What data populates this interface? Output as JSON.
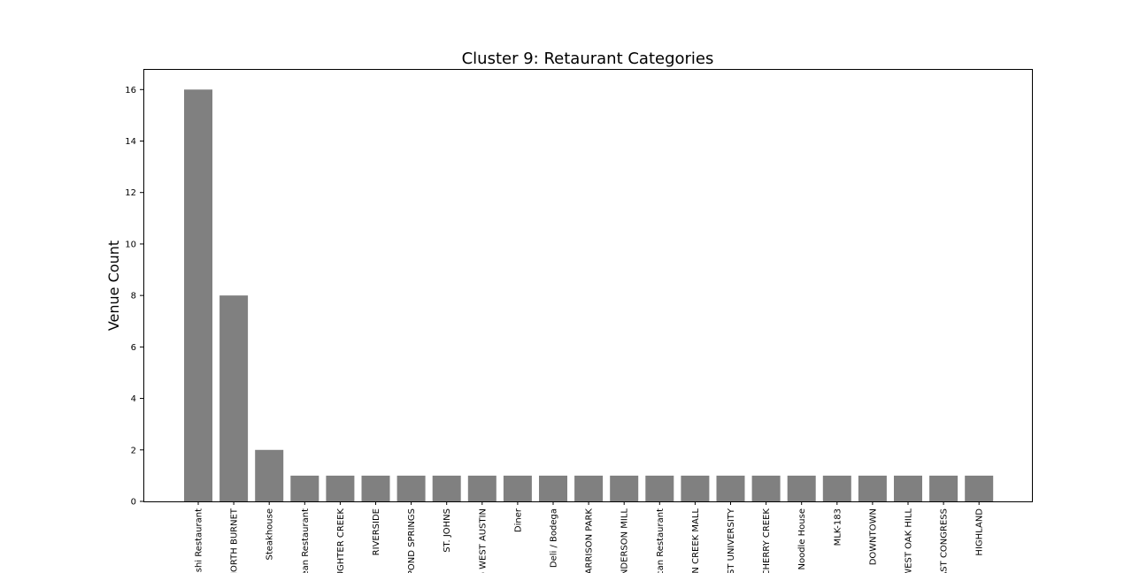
{
  "chart_data": {
    "type": "bar",
    "title": "Cluster 9: Retaurant Categories",
    "xlabel": "",
    "ylabel": "Venue Count",
    "ylim": [
      0,
      16.8
    ],
    "yticks": [
      0,
      2,
      4,
      6,
      8,
      10,
      12,
      14,
      16
    ],
    "categories": [
      "shi Restaurant",
      "NORTH BURNET",
      "Steakhouse",
      "ean Restaurant",
      "UGHTER CREEK",
      "RIVERSIDE",
      "POND SPRINGS",
      "ST. JOHNS",
      "o WEST AUSTIN",
      "Diner",
      "Deli / Bodega",
      "ARRISON PARK",
      "NDERSON MILL",
      "can Restaurant",
      "N CREEK MALL",
      "ST UNIVERSITY",
      "CHERRY CREEK",
      "Noodle House",
      "MLK-183",
      "DOWNTOWN",
      "WEST OAK HILL",
      "AST CONGRESS",
      "HIGHLAND"
    ],
    "values": [
      16,
      8,
      2,
      1,
      1,
      1,
      1,
      1,
      1,
      1,
      1,
      1,
      1,
      1,
      1,
      1,
      1,
      1,
      1,
      1,
      1,
      1,
      1
    ],
    "bar_color": "#808080",
    "grid": false,
    "legend": "none"
  }
}
